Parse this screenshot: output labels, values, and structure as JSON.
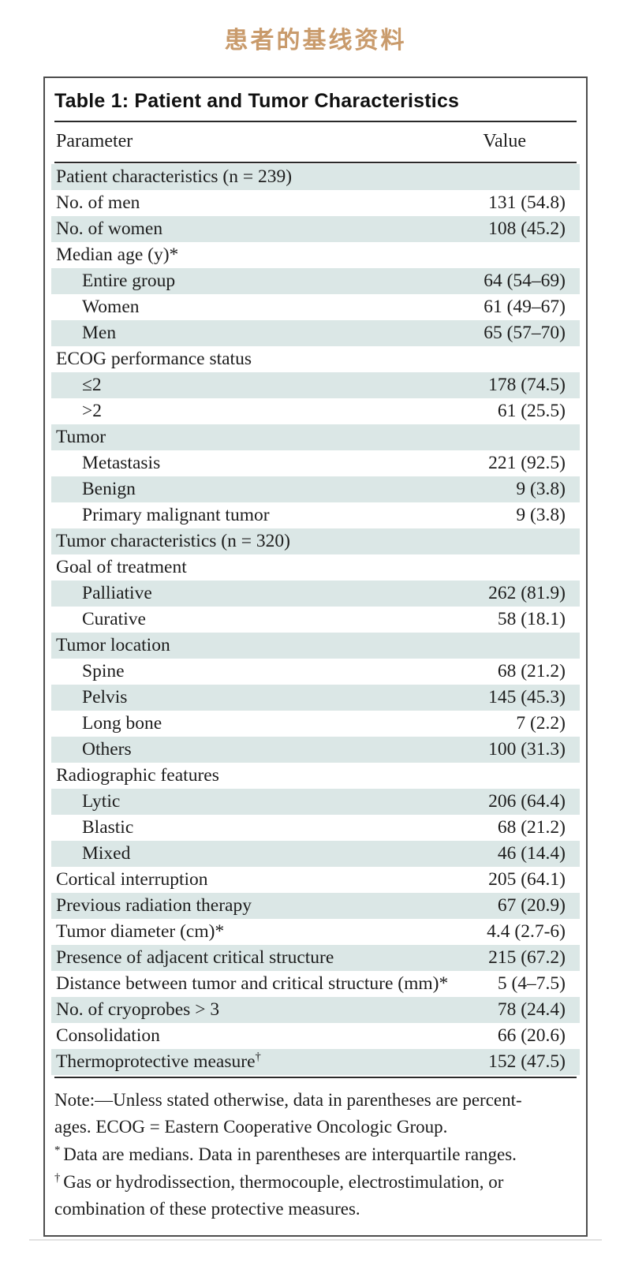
{
  "page": {
    "title": "患者的基线资料"
  },
  "colors": {
    "accent_title": "#c99b6c",
    "row_shade": "#dbe7e6",
    "border": "#4d4d4d",
    "text": "#1d1d1d"
  },
  "table": {
    "title": "Table 1: Patient and Tumor Characteristics",
    "header": {
      "parameter": "Parameter",
      "value": "Value"
    },
    "rows": [
      {
        "label": "Patient characteristics (n = 239)",
        "value": "",
        "indent": false
      },
      {
        "label": "No. of men",
        "value": "131 (54.8)",
        "indent": false
      },
      {
        "label": "No. of women",
        "value": "108 (45.2)",
        "indent": false
      },
      {
        "label": "Median age (y)*",
        "value": "",
        "indent": false
      },
      {
        "label": "Entire group",
        "value": "64 (54–69)",
        "indent": true
      },
      {
        "label": "Women",
        "value": "61 (49–67)",
        "indent": true
      },
      {
        "label": "Men",
        "value": "65 (57–70)",
        "indent": true
      },
      {
        "label": "ECOG performance status",
        "value": "",
        "indent": false
      },
      {
        "label": "≤2",
        "value": "178 (74.5)",
        "indent": true
      },
      {
        "label": ">2",
        "value": "61 (25.5)",
        "indent": true
      },
      {
        "label": "Tumor",
        "value": "",
        "indent": false
      },
      {
        "label": "Metastasis",
        "value": "221 (92.5)",
        "indent": true
      },
      {
        "label": "Benign",
        "value": "9 (3.8)",
        "indent": true
      },
      {
        "label": "Primary malignant tumor",
        "value": "9 (3.8)",
        "indent": true
      },
      {
        "label": "Tumor characteristics (n = 320)",
        "value": "",
        "indent": false
      },
      {
        "label": "Goal of treatment",
        "value": "",
        "indent": false
      },
      {
        "label": "Palliative",
        "value": "262 (81.9)",
        "indent": true
      },
      {
        "label": "Curative",
        "value": "58 (18.1)",
        "indent": true
      },
      {
        "label": "Tumor location",
        "value": "",
        "indent": false
      },
      {
        "label": "Spine",
        "value": "68 (21.2)",
        "indent": true
      },
      {
        "label": "Pelvis",
        "value": "145 (45.3)",
        "indent": true
      },
      {
        "label": "Long bone",
        "value": "7 (2.2)",
        "indent": true
      },
      {
        "label": "Others",
        "value": "100 (31.3)",
        "indent": true
      },
      {
        "label": "Radiographic features",
        "value": "",
        "indent": false
      },
      {
        "label": "Lytic",
        "value": "206 (64.4)",
        "indent": true
      },
      {
        "label": "Blastic",
        "value": "68 (21.2)",
        "indent": true
      },
      {
        "label": "Mixed",
        "value": "46 (14.4)",
        "indent": true
      },
      {
        "label": "Cortical interruption",
        "value": "205 (64.1)",
        "indent": false
      },
      {
        "label": "Previous radiation therapy",
        "value": "67 (20.9)",
        "indent": false
      },
      {
        "label": "Tumor diameter (cm)*",
        "value": "4.4 (2.7-6)",
        "indent": false
      },
      {
        "label": "Presence of adjacent critical structure",
        "value": "215 (67.2)",
        "indent": false
      },
      {
        "label": "Distance between tumor and critical structure (mm)*",
        "value": "5 (4–7.5)",
        "indent": false
      },
      {
        "label": "No. of cryoprobes > 3",
        "value": "78 (24.4)",
        "indent": false
      },
      {
        "label": "Consolidation",
        "value": "66 (20.6)",
        "indent": false
      },
      {
        "label": "Thermoprotective measure",
        "sup": "†",
        "value": "152 (47.5)",
        "indent": false
      }
    ],
    "notes": [
      {
        "sym": "",
        "lines": [
          "Note:—Unless stated otherwise, data in parentheses are percent-",
          "ages. ECOG = Eastern Cooperative Oncologic Group."
        ]
      },
      {
        "sym": "*",
        "lines": [
          "Data are medians. Data in parentheses are interquartile ranges."
        ]
      },
      {
        "sym": "†",
        "lines": [
          "Gas or hydrodissection, thermocouple, electrostimulation, or",
          "combination of these protective measures."
        ]
      }
    ]
  }
}
